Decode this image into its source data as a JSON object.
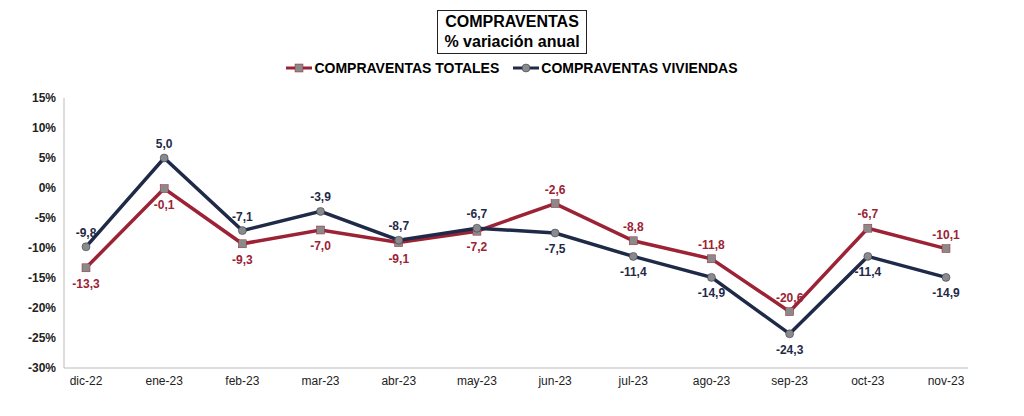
{
  "chart_data": {
    "type": "line",
    "title": "COMPRAVENTAS",
    "subtitle": "% variación anual",
    "categories": [
      "dic-22",
      "ene-23",
      "feb-23",
      "mar-23",
      "abr-23",
      "may-23",
      "jun-23",
      "jul-23",
      "ago-23",
      "sep-23",
      "oct-23",
      "nov-23"
    ],
    "series": [
      {
        "name": "COMPRAVENTAS TOTALES",
        "color": "#9b2335",
        "marker": "square",
        "values": [
          -13.3,
          -0.1,
          -9.3,
          -7.0,
          -9.1,
          -7.2,
          -2.6,
          -8.8,
          -11.8,
          -20.6,
          -6.7,
          -10.1
        ],
        "value_labels": [
          "-13,3",
          "-0,1",
          "-9,3",
          "-7,0",
          "-9,1",
          "-7,2",
          "-2,6",
          "-8,8",
          "-11,8",
          "-20,6",
          "-6,7",
          "-10,1"
        ]
      },
      {
        "name": "COMPRAVENTAS VIVIENDAS",
        "color": "#1f2a48",
        "marker": "circle",
        "values": [
          -9.8,
          5.0,
          -7.1,
          -3.9,
          -8.7,
          -6.7,
          -7.5,
          -11.4,
          -14.9,
          -24.3,
          -11.4,
          -14.9
        ],
        "value_labels": [
          "-9,8",
          "5,0",
          "-7,1",
          "-3,9",
          "-8,7",
          "-6,7",
          "-7,5",
          "-11,4",
          "-14,9",
          "-24,3",
          "-11,4",
          "-14,9"
        ]
      }
    ],
    "ylim": [
      -30,
      15
    ],
    "yticks": [
      {
        "value": 15,
        "label": "15%"
      },
      {
        "value": 10,
        "label": "10%"
      },
      {
        "value": 5,
        "label": "5%"
      },
      {
        "value": 0,
        "label": "0%"
      },
      {
        "value": -5,
        "label": "-5%"
      },
      {
        "value": -10,
        "label": "-10%"
      },
      {
        "value": -15,
        "label": "-15%"
      },
      {
        "value": -20,
        "label": "-20%"
      },
      {
        "value": -25,
        "label": "-25%"
      },
      {
        "value": -30,
        "label": "-30%"
      }
    ],
    "grid": false,
    "legend": "top",
    "data_labels": true
  }
}
